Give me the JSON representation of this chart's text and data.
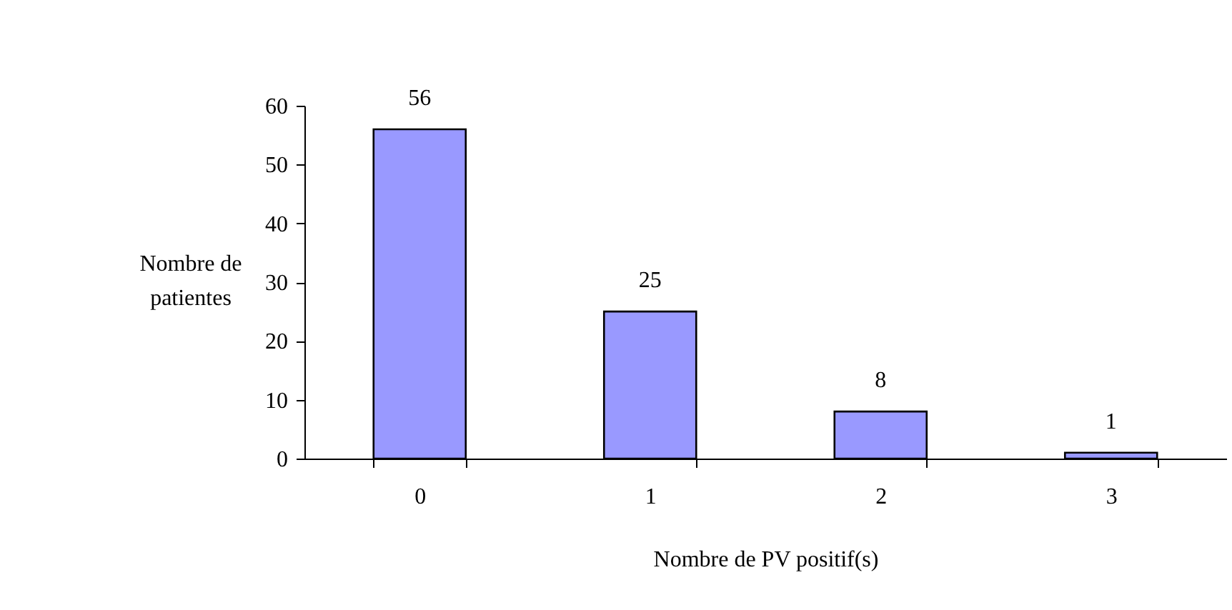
{
  "chart_data": {
    "type": "bar",
    "xlabel": "Nombre de PV positif(s)",
    "ylabel": "Nombre de patientes",
    "categories": [
      "0",
      "1",
      "2",
      "3"
    ],
    "values": [
      56,
      25,
      8,
      1
    ],
    "color": "#9999ff",
    "ylim": [
      0,
      60
    ],
    "yticks": [
      0,
      10,
      20,
      30,
      40,
      50,
      60
    ],
    "data_labels": true,
    "grid": false
  }
}
